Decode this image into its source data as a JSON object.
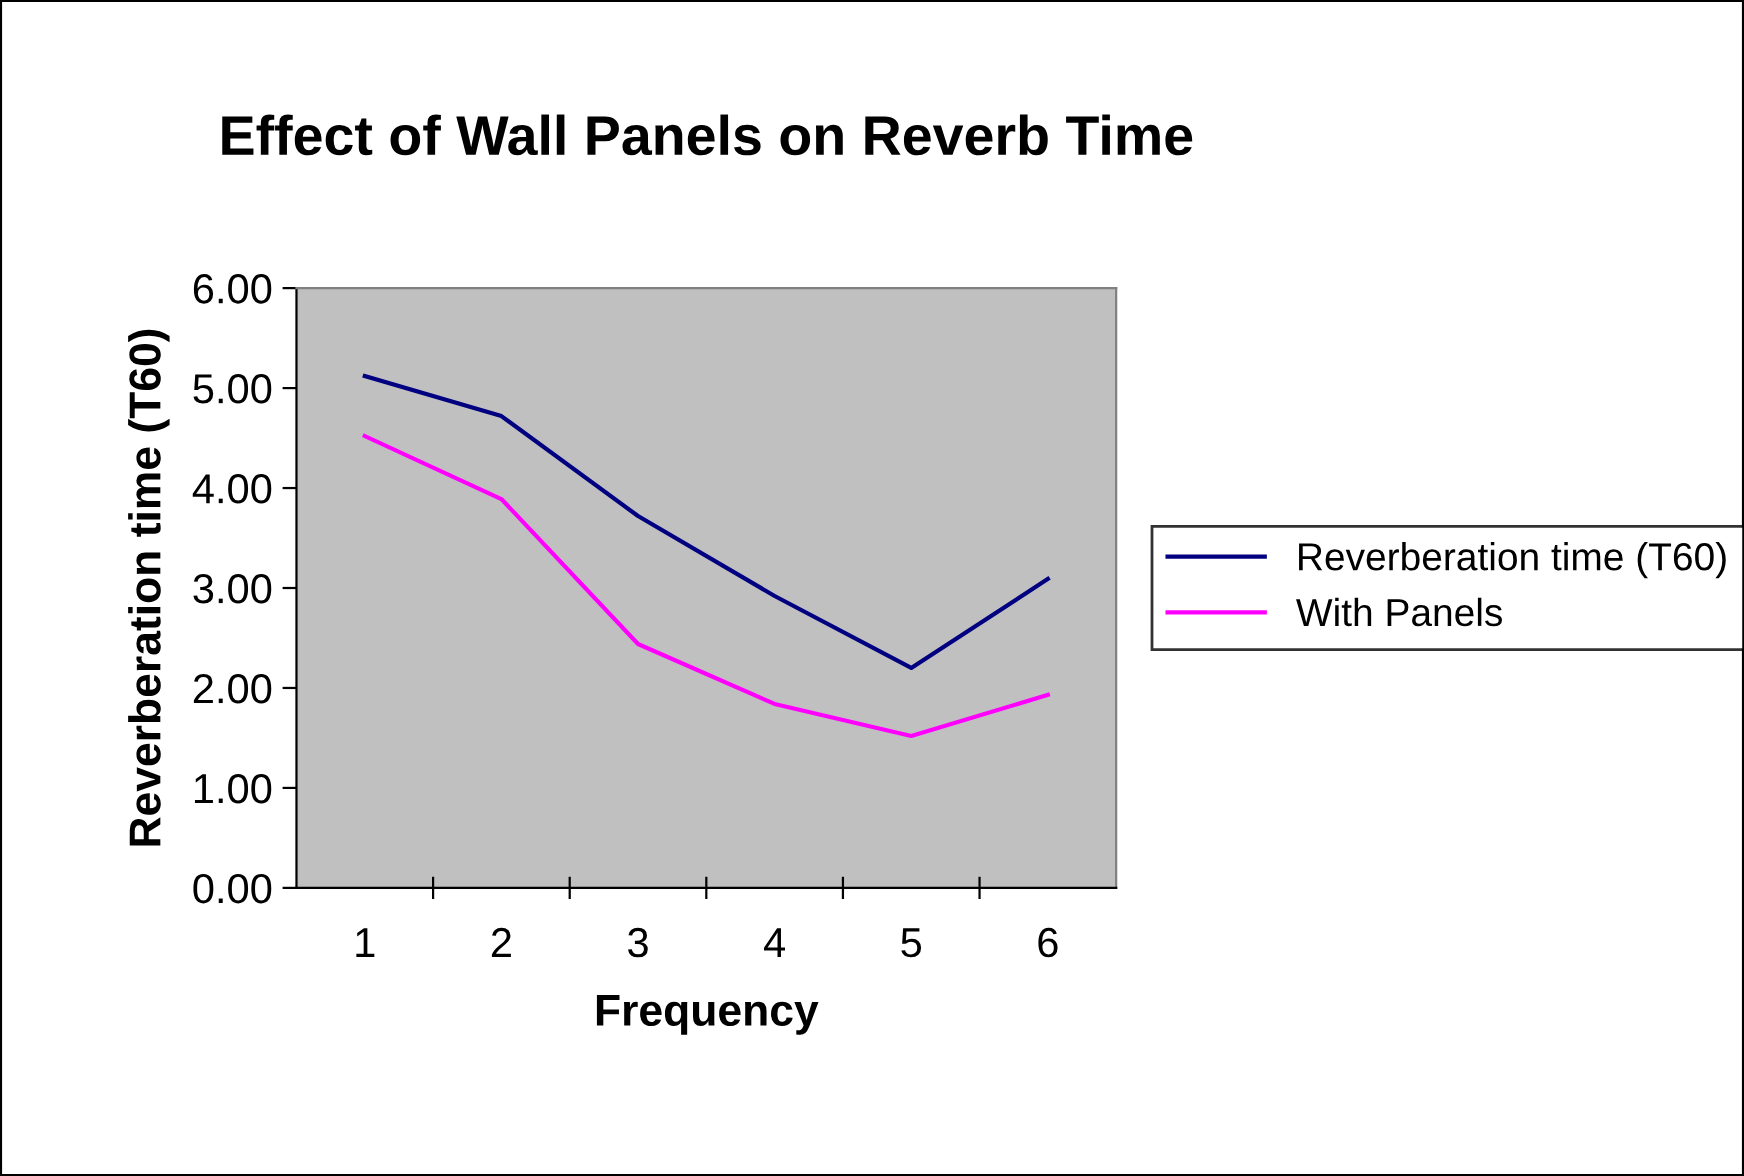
{
  "chart_data": {
    "type": "line",
    "title": "Effect of Wall Panels on Reverb Time",
    "xlabel": "Frequency",
    "ylabel": "Reverberation time (T60)",
    "categories": [
      "1",
      "2",
      "3",
      "4",
      "5",
      "6"
    ],
    "series": [
      {
        "name": "Reverberation time (T60)",
        "color": "#000080",
        "values": [
          5.12,
          4.72,
          3.72,
          2.92,
          2.2,
          3.09
        ]
      },
      {
        "name": "With Panels",
        "color": "#ff00ff",
        "values": [
          4.52,
          3.89,
          2.44,
          1.84,
          1.52,
          1.93
        ]
      }
    ],
    "ylim": [
      0,
      6
    ],
    "yticks": [
      {
        "value": 0,
        "label": "0.00"
      },
      {
        "value": 1,
        "label": "1.00"
      },
      {
        "value": 2,
        "label": "2.00"
      },
      {
        "value": 3,
        "label": "3.00"
      },
      {
        "value": 4,
        "label": "4.00"
      },
      {
        "value": 5,
        "label": "5.00"
      },
      {
        "value": 6,
        "label": "6.00"
      }
    ],
    "grid": false,
    "legend": "right",
    "marker": "none",
    "line_style": "solid"
  }
}
